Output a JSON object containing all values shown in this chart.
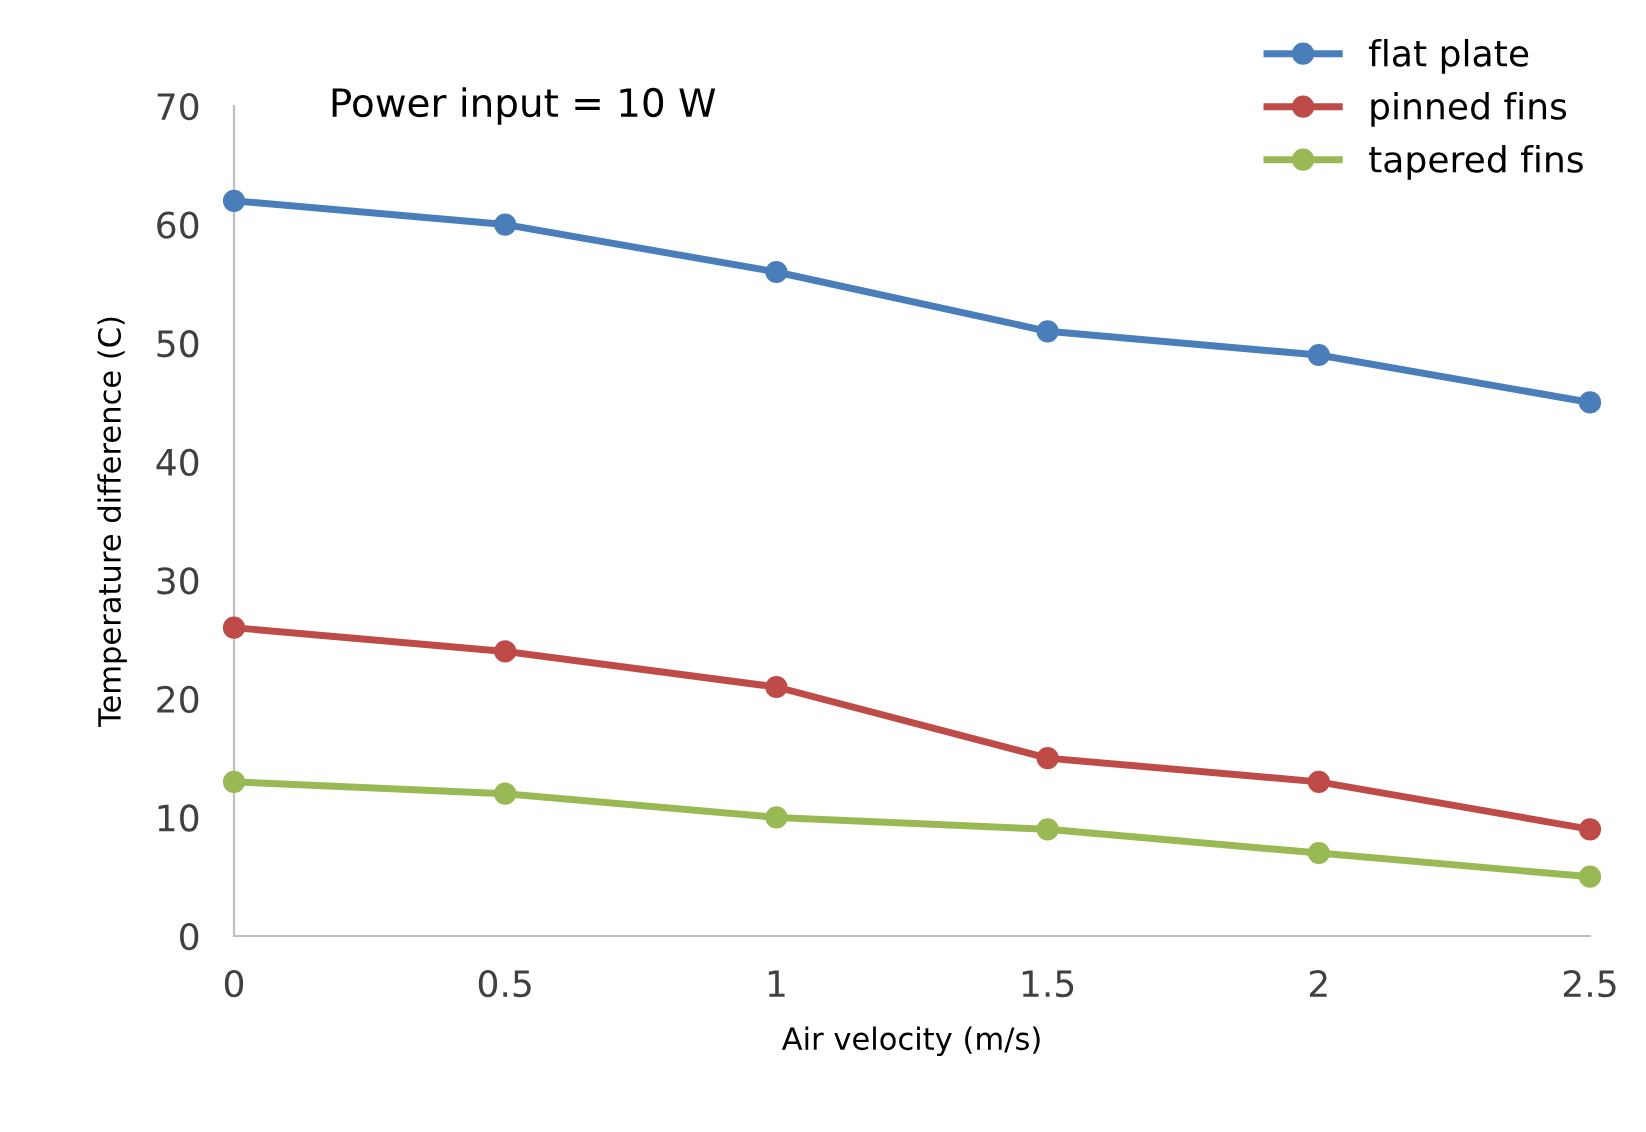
{
  "chart_data": {
    "type": "line",
    "xlabel": "Air velocity (m/s)",
    "ylabel": "Temperature difference (C)",
    "annotations": [
      "Power input = 10 W"
    ],
    "x": [
      0,
      0.5,
      1,
      1.5,
      2,
      2.5
    ],
    "series": [
      {
        "name": "flat plate",
        "color": "#4a7ebb",
        "values": [
          62,
          60,
          56,
          51,
          49,
          45
        ]
      },
      {
        "name": "pinned fins",
        "color": "#be4b48",
        "values": [
          26,
          24,
          21,
          15,
          13,
          9
        ]
      },
      {
        "name": "tapered fins",
        "color": "#98b954",
        "values": [
          13,
          12,
          10,
          9,
          7,
          5
        ]
      }
    ],
    "xlim": [
      0,
      2.5
    ],
    "xticks": [
      0,
      0.5,
      1,
      1.5,
      2,
      2.5
    ],
    "ylim": [
      0,
      70
    ],
    "yticks": [
      0,
      10,
      20,
      30,
      40,
      50,
      60,
      70
    ],
    "grid": false,
    "legend": "top right",
    "marker": "circle",
    "line_style": "solid"
  }
}
